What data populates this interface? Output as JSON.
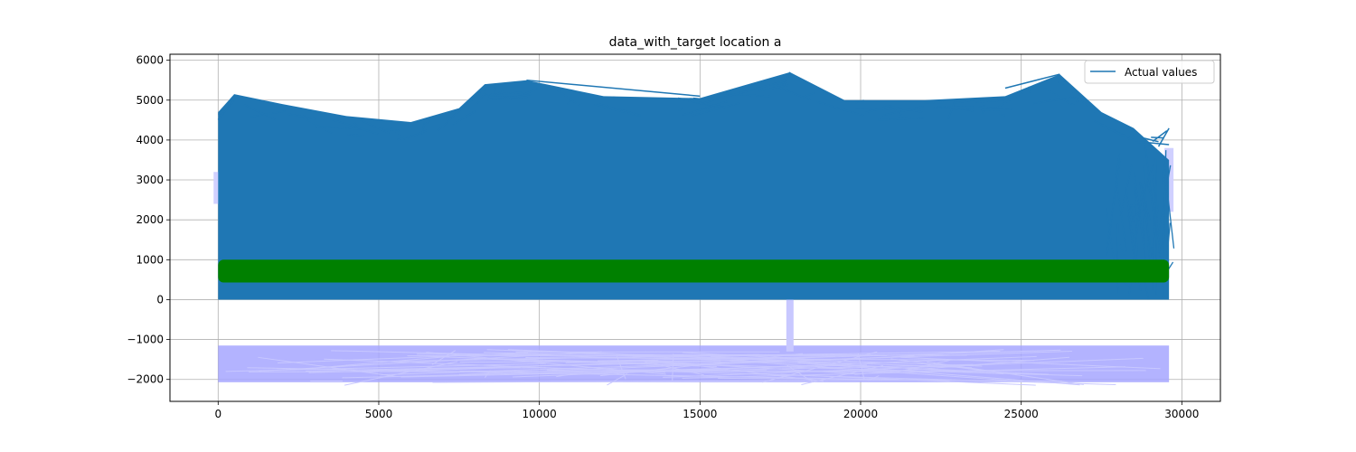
{
  "chart_data": {
    "type": "line",
    "title": "data_with_target location a",
    "xlabel": "",
    "ylabel": "",
    "xlim": [
      -1500,
      31200
    ],
    "ylim": [
      -2550,
      6150
    ],
    "x_ticks": [
      0,
      5000,
      10000,
      15000,
      20000,
      25000,
      30000
    ],
    "x_tick_labels": [
      "0",
      "5000",
      "10000",
      "15000",
      "20000",
      "25000",
      "30000"
    ],
    "y_ticks": [
      -2000,
      -1000,
      0,
      1000,
      2000,
      3000,
      4000,
      5000,
      6000
    ],
    "y_tick_labels": [
      "−2000",
      "−1000",
      "0",
      "1000",
      "2000",
      "3000",
      "4000",
      "5000",
      "6000"
    ],
    "grid": true,
    "legend": {
      "position": "top-right",
      "entries": [
        "Actual values"
      ]
    },
    "series": [
      {
        "name": "Actual values",
        "kind": "line",
        "color": "#1f77b4",
        "x_range": [
          0,
          29600
        ],
        "y_range": [
          0,
          5700
        ],
        "envelope_top": [
          {
            "x": 0,
            "y": 4700
          },
          {
            "x": 500,
            "y": 5150
          },
          {
            "x": 2000,
            "y": 4900
          },
          {
            "x": 4000,
            "y": 4600
          },
          {
            "x": 6000,
            "y": 4450
          },
          {
            "x": 7500,
            "y": 4800
          },
          {
            "x": 8300,
            "y": 5400
          },
          {
            "x": 9600,
            "y": 5500
          },
          {
            "x": 12000,
            "y": 5100
          },
          {
            "x": 15000,
            "y": 5050
          },
          {
            "x": 16500,
            "y": 5400
          },
          {
            "x": 17800,
            "y": 5700
          },
          {
            "x": 19500,
            "y": 5000
          },
          {
            "x": 22000,
            "y": 5000
          },
          {
            "x": 24500,
            "y": 5100
          },
          {
            "x": 26200,
            "y": 5650
          },
          {
            "x": 27500,
            "y": 4700
          },
          {
            "x": 28500,
            "y": 4300
          }
        ]
      },
      {
        "name": "",
        "kind": "band",
        "color": "#008000",
        "x_range": [
          0,
          29600
        ],
        "y_range": [
          430,
          1000
        ]
      },
      {
        "name": "",
        "kind": "band",
        "color": "#a6a6ff",
        "x_range": [
          0,
          29600
        ],
        "y_range": [
          -2150,
          -1250
        ],
        "spike": {
          "x": 17800,
          "y_range": [
            -1300,
            0
          ]
        }
      }
    ]
  }
}
